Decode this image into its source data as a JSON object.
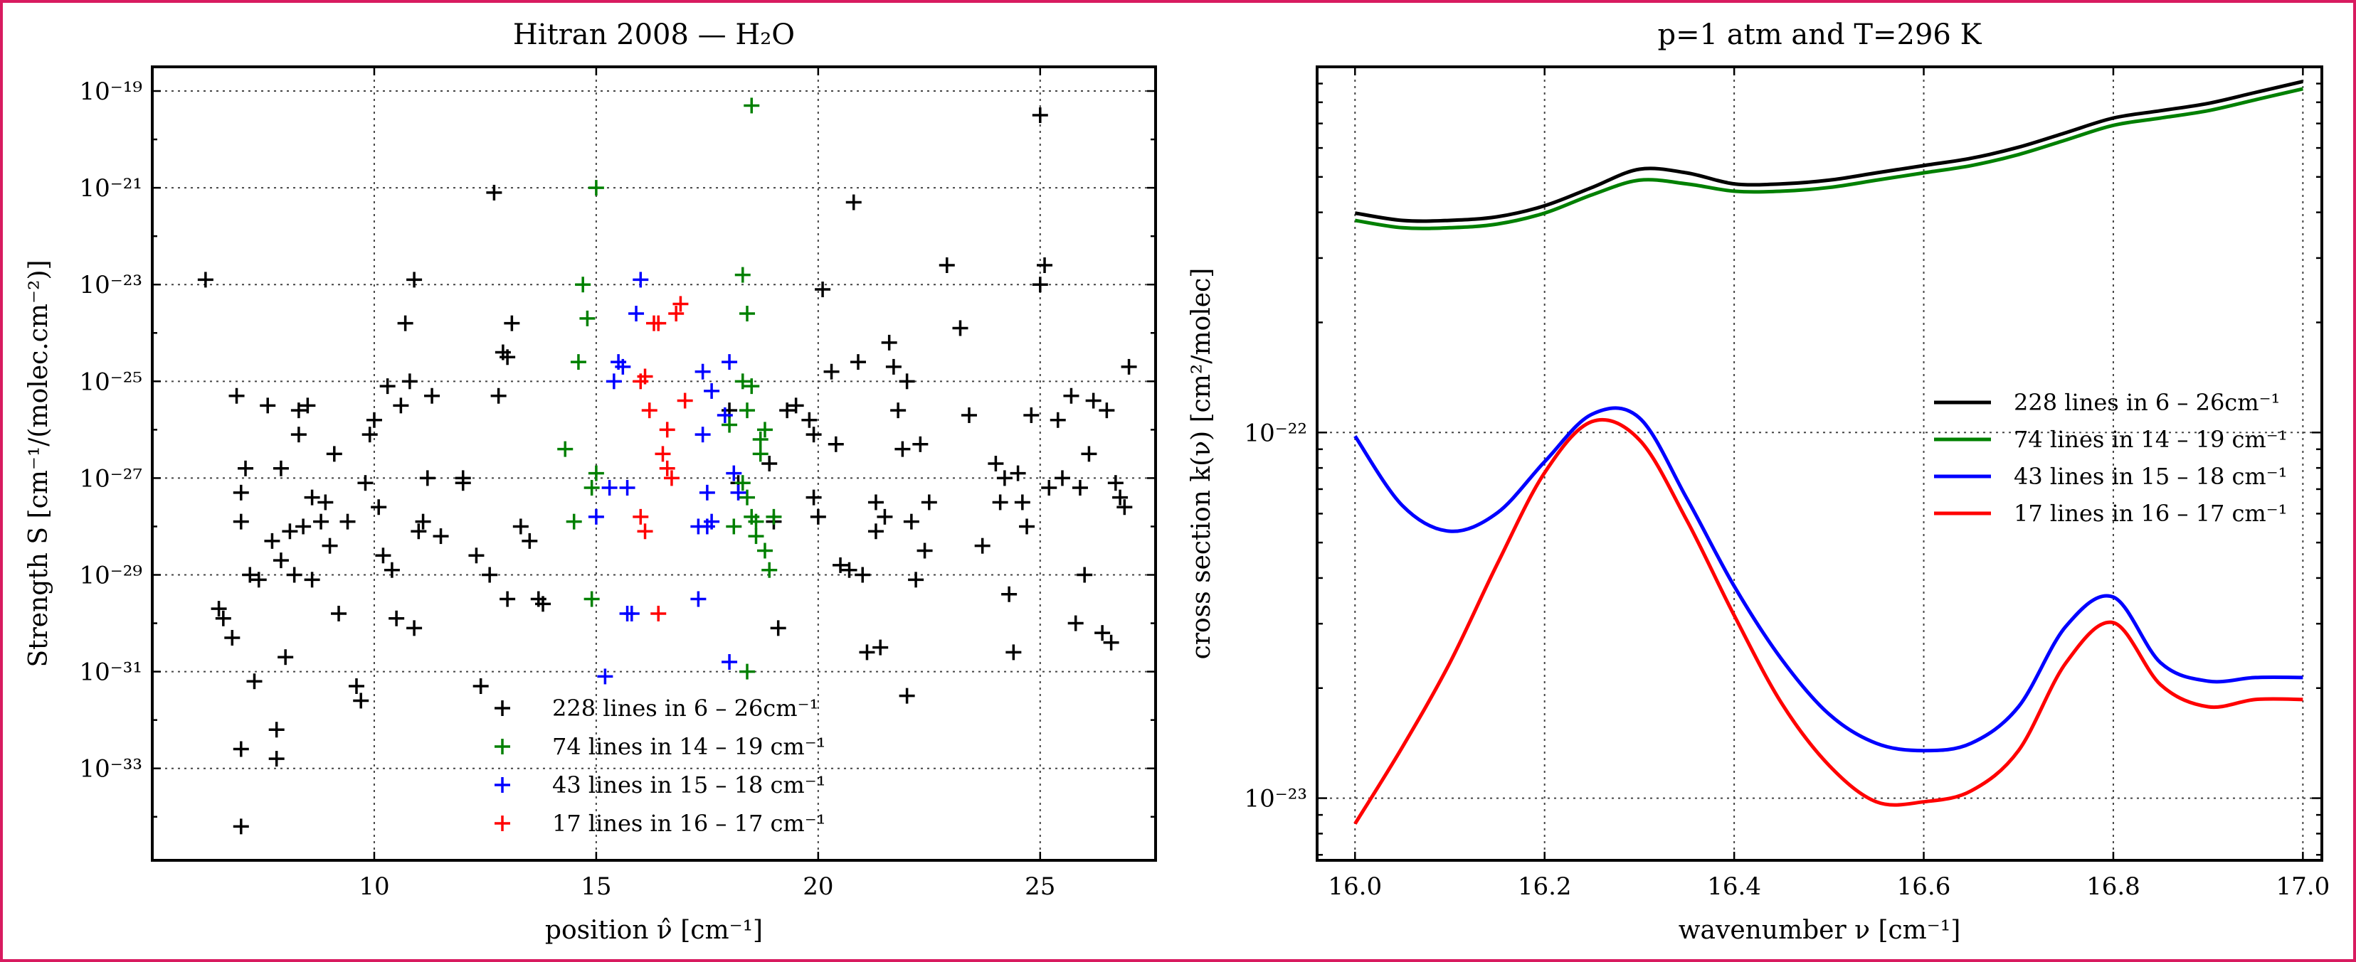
{
  "chart_data": [
    {
      "type": "scatter",
      "title": "Hitran 2008 — H₂O",
      "xlabel": "position ν̂ [cm⁻¹]",
      "ylabel": "Strength S [cm⁻¹/(molec.cm⁻²)]",
      "xlim": [
        5,
        27.6
      ],
      "ylim_log10": [
        -34.9,
        -18.5
      ],
      "yscale": "log",
      "xticks": [
        10,
        15,
        20,
        25
      ],
      "yticks": [
        {
          "exp": -19,
          "label": "10⁻¹⁹"
        },
        {
          "exp": -21,
          "label": "10⁻²¹"
        },
        {
          "exp": -23,
          "label": "10⁻²³"
        },
        {
          "exp": -25,
          "label": "10⁻²⁵"
        },
        {
          "exp": -27,
          "label": "10⁻²⁷"
        },
        {
          "exp": -29,
          "label": "10⁻²⁹"
        },
        {
          "exp": -31,
          "label": "10⁻³¹"
        },
        {
          "exp": -33,
          "label": "10⁻³³"
        }
      ],
      "legend_position": "lower-center",
      "series": [
        {
          "name": "228 lines in 6 – 26cm⁻¹",
          "color": "#000000",
          "marker": "+",
          "points": [
            [
              6.2,
              -22.9
            ],
            [
              6.5,
              -29.7
            ],
            [
              6.6,
              -29.9
            ],
            [
              6.8,
              -30.3
            ],
            [
              6.9,
              -25.3
            ],
            [
              7.0,
              -27.3
            ],
            [
              7.0,
              -27.9
            ],
            [
              7.1,
              -26.8
            ],
            [
              7.2,
              -29.0
            ],
            [
              7.3,
              -31.2
            ],
            [
              7.4,
              -29.1
            ],
            [
              7.0,
              -32.6
            ],
            [
              7.0,
              -34.2
            ],
            [
              7.6,
              -25.5
            ],
            [
              7.7,
              -28.3
            ],
            [
              7.8,
              -32.2
            ],
            [
              7.8,
              -32.8
            ],
            [
              7.9,
              -28.7
            ],
            [
              7.9,
              -26.8
            ],
            [
              8.0,
              -30.7
            ],
            [
              8.1,
              -28.1
            ],
            [
              8.2,
              -29.0
            ],
            [
              8.3,
              -25.6
            ],
            [
              8.3,
              -26.1
            ],
            [
              8.4,
              -28.0
            ],
            [
              8.5,
              -25.5
            ],
            [
              8.6,
              -27.4
            ],
            [
              8.6,
              -29.1
            ],
            [
              8.8,
              -27.9
            ],
            [
              8.9,
              -27.5
            ],
            [
              9.0,
              -28.4
            ],
            [
              9.1,
              -26.5
            ],
            [
              9.2,
              -29.8
            ],
            [
              9.4,
              -27.9
            ],
            [
              9.6,
              -31.3
            ],
            [
              9.7,
              -31.6
            ],
            [
              9.8,
              -27.1
            ],
            [
              9.9,
              -26.1
            ],
            [
              10.0,
              -25.8
            ],
            [
              10.1,
              -27.6
            ],
            [
              10.2,
              -28.6
            ],
            [
              10.3,
              -25.1
            ],
            [
              10.4,
              -28.9
            ],
            [
              10.5,
              -29.9
            ],
            [
              10.6,
              -25.5
            ],
            [
              10.7,
              -23.8
            ],
            [
              10.8,
              -25.0
            ],
            [
              10.9,
              -22.9
            ],
            [
              10.9,
              -30.1
            ],
            [
              11.0,
              -28.1
            ],
            [
              11.1,
              -27.9
            ],
            [
              11.2,
              -27.0
            ],
            [
              11.3,
              -25.3
            ],
            [
              11.5,
              -28.2
            ],
            [
              12.0,
              -27.0
            ],
            [
              12.0,
              -27.1
            ],
            [
              12.3,
              -28.6
            ],
            [
              12.4,
              -31.3
            ],
            [
              12.6,
              -29.0
            ],
            [
              12.7,
              -21.1
            ],
            [
              12.8,
              -25.3
            ],
            [
              12.9,
              -24.4
            ],
            [
              13.0,
              -24.5
            ],
            [
              13.0,
              -29.5
            ],
            [
              13.1,
              -23.8
            ],
            [
              13.3,
              -28.0
            ],
            [
              13.5,
              -28.3
            ],
            [
              13.7,
              -29.5
            ],
            [
              13.8,
              -29.6
            ],
            [
              18.0,
              -25.6
            ],
            [
              18.2,
              -27.1
            ],
            [
              18.9,
              -26.7
            ],
            [
              19.0,
              -27.9
            ],
            [
              19.1,
              -30.1
            ],
            [
              19.3,
              -25.6
            ],
            [
              19.5,
              -25.5
            ],
            [
              19.8,
              -25.8
            ],
            [
              19.9,
              -26.1
            ],
            [
              19.9,
              -27.4
            ],
            [
              20.0,
              -27.8
            ],
            [
              20.1,
              -23.1
            ],
            [
              20.3,
              -24.8
            ],
            [
              20.4,
              -26.3
            ],
            [
              20.5,
              -28.8
            ],
            [
              20.7,
              -28.9
            ],
            [
              20.8,
              -21.3
            ],
            [
              20.9,
              -24.6
            ],
            [
              21.0,
              -29.0
            ],
            [
              21.1,
              -30.6
            ],
            [
              21.3,
              -28.1
            ],
            [
              21.3,
              -27.5
            ],
            [
              21.4,
              -30.5
            ],
            [
              21.5,
              -27.8
            ],
            [
              21.6,
              -24.2
            ],
            [
              21.7,
              -24.7
            ],
            [
              21.8,
              -25.6
            ],
            [
              21.9,
              -26.4
            ],
            [
              22.0,
              -25.0
            ],
            [
              22.0,
              -31.5
            ],
            [
              22.1,
              -27.9
            ],
            [
              22.2,
              -29.1
            ],
            [
              22.3,
              -26.3
            ],
            [
              22.4,
              -28.5
            ],
            [
              22.5,
              -27.5
            ],
            [
              22.9,
              -22.6
            ],
            [
              23.2,
              -23.9
            ],
            [
              23.4,
              -25.7
            ],
            [
              23.7,
              -28.4
            ],
            [
              24.0,
              -26.7
            ],
            [
              24.1,
              -27.5
            ],
            [
              24.2,
              -27.0
            ],
            [
              24.3,
              -29.4
            ],
            [
              24.4,
              -30.6
            ],
            [
              24.5,
              -26.9
            ],
            [
              24.6,
              -27.5
            ],
            [
              24.7,
              -28.0
            ],
            [
              24.8,
              -25.7
            ],
            [
              25.0,
              -23.0
            ],
            [
              25.1,
              -22.6
            ],
            [
              25.0,
              -19.5
            ],
            [
              25.2,
              -27.2
            ],
            [
              25.4,
              -25.8
            ],
            [
              25.5,
              -27.0
            ],
            [
              25.7,
              -25.3
            ],
            [
              25.8,
              -30.0
            ],
            [
              25.9,
              -27.2
            ],
            [
              26.0,
              -29.0
            ],
            [
              26.1,
              -26.5
            ],
            [
              26.2,
              -25.4
            ],
            [
              26.4,
              -30.2
            ],
            [
              26.5,
              -25.6
            ],
            [
              26.6,
              -30.4
            ],
            [
              26.7,
              -27.1
            ],
            [
              26.8,
              -27.4
            ],
            [
              26.9,
              -27.6
            ],
            [
              27.0,
              -24.7
            ]
          ]
        },
        {
          "name": "74 lines in 14 – 19 cm⁻¹",
          "color": "#008000",
          "marker": "+",
          "points": [
            [
              14.3,
              -26.4
            ],
            [
              14.5,
              -27.9
            ],
            [
              14.6,
              -24.6
            ],
            [
              14.7,
              -23.0
            ],
            [
              14.8,
              -23.7
            ],
            [
              14.9,
              -27.2
            ],
            [
              15.0,
              -21.0
            ],
            [
              15.0,
              -26.9
            ],
            [
              14.9,
              -29.5
            ],
            [
              18.5,
              -19.3
            ],
            [
              18.3,
              -22.8
            ],
            [
              18.4,
              -23.6
            ],
            [
              18.3,
              -25.0
            ],
            [
              18.5,
              -25.1
            ],
            [
              18.4,
              -25.6
            ],
            [
              18.4,
              -27.4
            ],
            [
              18.5,
              -27.8
            ],
            [
              18.6,
              -27.9
            ],
            [
              18.6,
              -28.2
            ],
            [
              18.7,
              -26.2
            ],
            [
              18.7,
              -26.5
            ],
            [
              18.8,
              -26.0
            ],
            [
              18.8,
              -28.5
            ],
            [
              18.9,
              -28.9
            ],
            [
              19.0,
              -27.8
            ],
            [
              18.3,
              -27.1
            ],
            [
              18.1,
              -28.0
            ],
            [
              18.4,
              -31.0
            ],
            [
              18.0,
              -25.9
            ]
          ]
        },
        {
          "name": "43 lines in 15 – 18 cm⁻¹",
          "color": "#0000ff",
          "marker": "+",
          "points": [
            [
              15.0,
              -27.8
            ],
            [
              15.2,
              -31.1
            ],
            [
              15.3,
              -27.2
            ],
            [
              15.4,
              -25.0
            ],
            [
              15.5,
              -24.6
            ],
            [
              15.6,
              -24.7
            ],
            [
              15.7,
              -27.2
            ],
            [
              15.7,
              -29.8
            ],
            [
              15.8,
              -29.8
            ],
            [
              15.9,
              -23.6
            ],
            [
              16.0,
              -22.9
            ],
            [
              17.3,
              -29.5
            ],
            [
              17.4,
              -24.8
            ],
            [
              17.5,
              -27.3
            ],
            [
              17.6,
              -27.9
            ],
            [
              17.4,
              -26.1
            ],
            [
              17.6,
              -25.2
            ],
            [
              17.9,
              -25.7
            ],
            [
              18.0,
              -24.6
            ],
            [
              18.1,
              -26.9
            ],
            [
              18.2,
              -27.3
            ],
            [
              18.0,
              -30.8
            ],
            [
              17.3,
              -28.0
            ],
            [
              17.5,
              -28.0
            ]
          ]
        },
        {
          "name": "17 lines in 16 – 17 cm⁻¹",
          "color": "#ff0000",
          "marker": "+",
          "points": [
            [
              16.0,
              -25.0
            ],
            [
              16.1,
              -24.9
            ],
            [
              16.2,
              -25.6
            ],
            [
              16.3,
              -23.8
            ],
            [
              16.4,
              -23.8
            ],
            [
              16.5,
              -26.5
            ],
            [
              16.6,
              -26.0
            ],
            [
              16.6,
              -26.8
            ],
            [
              16.7,
              -27.0
            ],
            [
              16.8,
              -23.6
            ],
            [
              16.9,
              -23.4
            ],
            [
              17.0,
              -25.4
            ],
            [
              16.0,
              -27.8
            ],
            [
              16.1,
              -28.1
            ],
            [
              16.4,
              -29.8
            ]
          ]
        }
      ]
    },
    {
      "type": "line",
      "title": "p=1 atm and T=296 K",
      "xlabel": "wavenumber ν [cm⁻¹]",
      "ylabel": "cross section k(ν) [cm²/molec]",
      "xlim": [
        15.96,
        17.02
      ],
      "ylim_log10": [
        -23.17,
        -21.0
      ],
      "yscale": "log",
      "xticks": [
        16.0,
        16.2,
        16.4,
        16.6,
        16.8,
        17.0
      ],
      "xtick_labels": [
        "16.0",
        "16.2",
        "16.4",
        "16.6",
        "16.8",
        "17.0"
      ],
      "yticks": [
        {
          "exp": -22,
          "label": "10⁻²²"
        },
        {
          "exp": -23,
          "label": "10⁻²³"
        }
      ],
      "legend_position": "center-right",
      "x": [
        16.0,
        16.05,
        16.1,
        16.15,
        16.2,
        16.25,
        16.3,
        16.35,
        16.4,
        16.45,
        16.5,
        16.55,
        16.6,
        16.65,
        16.7,
        16.75,
        16.8,
        16.85,
        16.9,
        16.95,
        17.0
      ],
      "series": [
        {
          "name": "228 lines in 6 – 26cm⁻¹",
          "color": "#000000",
          "values": [
            -21.4,
            -21.42,
            -21.42,
            -21.41,
            -21.38,
            -21.33,
            -21.28,
            -21.29,
            -21.32,
            -21.32,
            -21.31,
            -21.29,
            -21.27,
            -21.25,
            -21.22,
            -21.18,
            -21.14,
            -21.12,
            -21.1,
            -21.07,
            -21.04
          ]
        },
        {
          "name": "74 lines in 14 – 19 cm⁻¹",
          "color": "#008000",
          "values": [
            -21.42,
            -21.44,
            -21.44,
            -21.43,
            -21.4,
            -21.35,
            -21.31,
            -21.32,
            -21.34,
            -21.34,
            -21.33,
            -21.31,
            -21.29,
            -21.27,
            -21.24,
            -21.2,
            -21.16,
            -21.14,
            -21.12,
            -21.09,
            -21.06
          ]
        },
        {
          "name": "43 lines in 15 – 18 cm⁻¹",
          "color": "#0000ff",
          "values": [
            -22.01,
            -22.2,
            -22.27,
            -22.22,
            -22.08,
            -21.95,
            -21.96,
            -22.18,
            -22.42,
            -22.62,
            -22.77,
            -22.85,
            -22.87,
            -22.85,
            -22.75,
            -22.53,
            -22.45,
            -22.63,
            -22.68,
            -22.67,
            -22.67
          ]
        },
        {
          "name": "17 lines in 16 – 17 cm⁻¹",
          "color": "#ff0000",
          "values": [
            -23.07,
            -22.86,
            -22.63,
            -22.36,
            -22.11,
            -21.97,
            -22.02,
            -22.24,
            -22.5,
            -22.74,
            -22.91,
            -23.01,
            -23.01,
            -22.98,
            -22.87,
            -22.63,
            -22.52,
            -22.69,
            -22.75,
            -22.73,
            -22.73
          ]
        }
      ]
    }
  ]
}
